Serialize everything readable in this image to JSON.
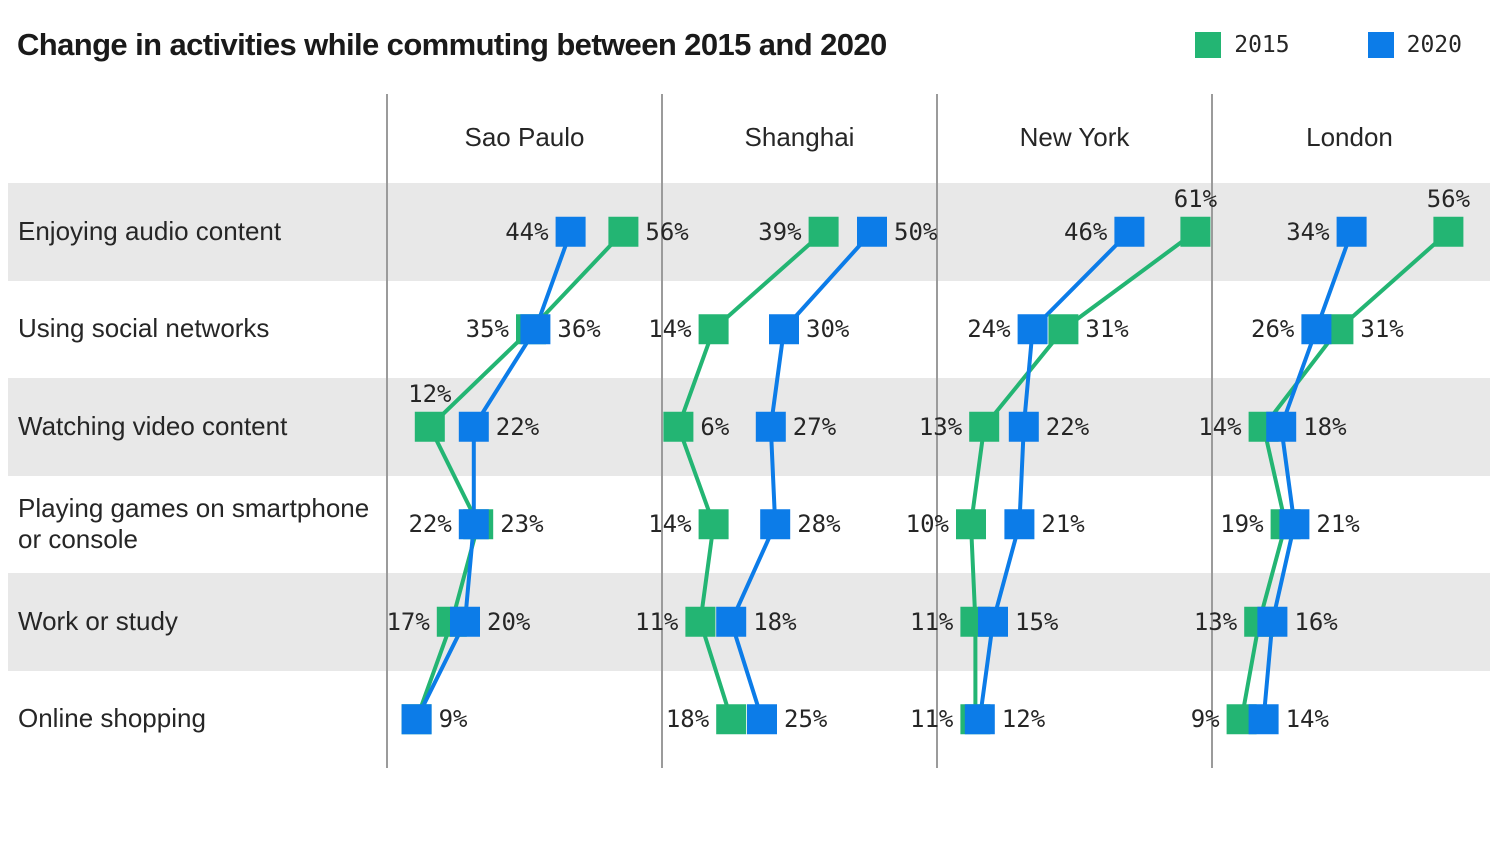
{
  "title": "Change in activities while commuting between 2015 and 2020",
  "legend": {
    "items": [
      {
        "label": "2015",
        "color": "#23b573"
      },
      {
        "label": "2020",
        "color": "#0c7ce8"
      }
    ]
  },
  "colors": {
    "green_2015": "#23b573",
    "blue_2020": "#0c7ce8",
    "row_band": "#e8e8e8",
    "divider": "#9b9b9b",
    "text": "#262626"
  },
  "chart_data": {
    "type": "scatter",
    "title": "Change in activities while commuting between 2015 and 2020",
    "unit": "%",
    "legend_position": "top-right",
    "series_names": [
      "2015",
      "2020"
    ],
    "xlim": [
      0,
      65
    ],
    "grid": false,
    "activities": [
      "Enjoying audio content",
      "Using social networks",
      "Watching video content",
      "Playing games on smartphone or console",
      "Work or study",
      "Online shopping"
    ],
    "panels": [
      {
        "city": "Sao Paulo",
        "rows": [
          {
            "y2015": 56,
            "y2020": 44,
            "side2015": "right",
            "side2020": "left"
          },
          {
            "y2015": 35,
            "y2020": 36,
            "side2015": "left",
            "side2020": "right"
          },
          {
            "y2015": 12,
            "y2020": 22,
            "side2015": "above",
            "side2020": "right"
          },
          {
            "y2015": 23,
            "y2020": 22,
            "side2015": "right",
            "side2020": "left"
          },
          {
            "y2015": 17,
            "y2020": 20,
            "side2015": "left",
            "side2020": "right"
          },
          {
            "y2015": 9,
            "y2020": 9,
            "side2015": "none",
            "side2020": "right"
          }
        ]
      },
      {
        "city": "Shanghai",
        "rows": [
          {
            "y2015": 39,
            "y2020": 50,
            "side2015": "left",
            "side2020": "right"
          },
          {
            "y2015": 14,
            "y2020": 30,
            "side2015": "left",
            "side2020": "right"
          },
          {
            "y2015": 6,
            "y2020": 27,
            "side2015": "right",
            "side2020": "right"
          },
          {
            "y2015": 14,
            "y2020": 28,
            "side2015": "left",
            "side2020": "right"
          },
          {
            "y2015": 11,
            "y2020": 18,
            "side2015": "left",
            "side2020": "right"
          },
          {
            "y2015": 18,
            "y2020": 25,
            "side2015": "left",
            "side2020": "right"
          }
        ]
      },
      {
        "city": "New York",
        "rows": [
          {
            "y2015": 61,
            "y2020": 46,
            "side2015": "above",
            "side2020": "left"
          },
          {
            "y2015": 31,
            "y2020": 24,
            "side2015": "right",
            "side2020": "left"
          },
          {
            "y2015": 13,
            "y2020": 22,
            "side2015": "left",
            "side2020": "right"
          },
          {
            "y2015": 10,
            "y2020": 21,
            "side2015": "left",
            "side2020": "right"
          },
          {
            "y2015": 11,
            "y2020": 15,
            "side2015": "left",
            "side2020": "right"
          },
          {
            "y2015": 11,
            "y2020": 12,
            "side2015": "left",
            "side2020": "right"
          }
        ]
      },
      {
        "city": "London",
        "rows": [
          {
            "y2015": 56,
            "y2020": 34,
            "side2015": "above",
            "side2020": "left"
          },
          {
            "y2015": 31,
            "y2020": 26,
            "side2015": "right",
            "side2020": "left"
          },
          {
            "y2015": 14,
            "y2020": 18,
            "side2015": "left",
            "side2020": "right"
          },
          {
            "y2015": 19,
            "y2020": 21,
            "side2015": "left",
            "side2020": "right"
          },
          {
            "y2015": 13,
            "y2020": 16,
            "side2015": "left",
            "side2020": "right"
          },
          {
            "y2015": 9,
            "y2020": 14,
            "side2015": "left",
            "side2020": "right"
          }
        ]
      }
    ]
  }
}
